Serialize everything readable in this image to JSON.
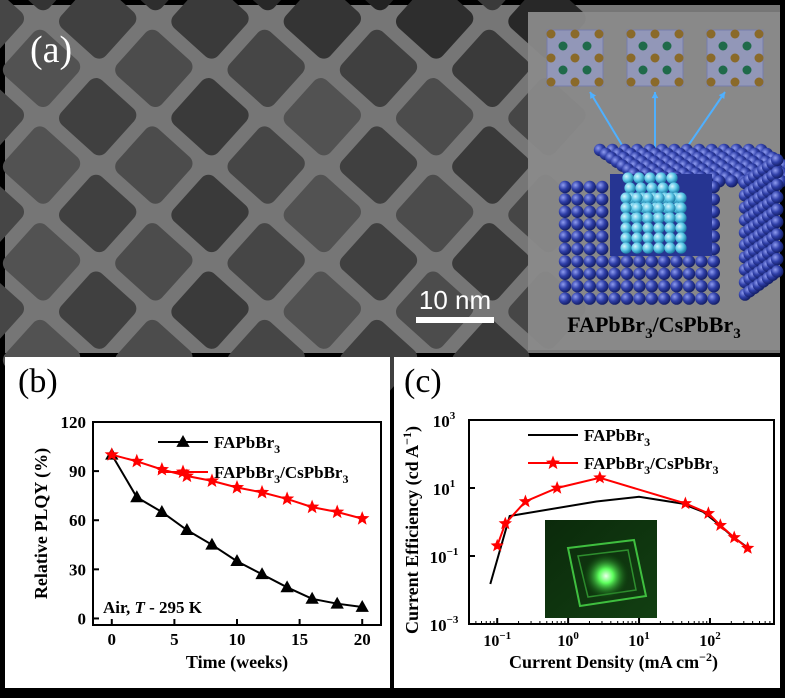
{
  "panel_a": {
    "label": "(a)",
    "scale_bar_text": "10 nm",
    "caption": {
      "main": "FAPbBr",
      "sub1": "3",
      "sep": "/CsPbBr",
      "sub2": "3"
    },
    "colors": {
      "shell": "#2f3fa8",
      "core": "#5ec8e8",
      "tem_bg": "#6a6a6a",
      "tem_edge": "#b4b4b4",
      "atom_pb": "#8a6a2a",
      "atom_cs": "#1f6a4a"
    }
  },
  "chart_data": [
    {
      "type": "line",
      "panel_label": "(b)",
      "x": [
        0,
        2,
        4,
        6,
        8,
        10,
        12,
        14,
        16,
        18,
        20
      ],
      "series": [
        {
          "name": "FAPbBr3",
          "label_main": "FAPbBr",
          "label_sub": "3",
          "color": "#000000",
          "marker": "triangle",
          "values": [
            100,
            74,
            65,
            54,
            45,
            35,
            27,
            19,
            12,
            9,
            7
          ]
        },
        {
          "name": "FAPbBr3/CsPbBr3",
          "label_main": "FAPbBr",
          "label_sub": "3",
          "label_sep": "/CsPbBr",
          "label_sub2": "3",
          "color": "#ff0000",
          "marker": "star",
          "values": [
            100,
            96,
            91,
            87,
            84,
            80,
            77,
            73,
            68,
            65,
            61
          ]
        }
      ],
      "xlabel": "Time (weeks)",
      "ylabel": "Relative PLQY (%)",
      "xlim": [
        -1.5,
        21.5
      ],
      "ylim": [
        -4,
        120
      ],
      "xticks": [
        0,
        5,
        10,
        15,
        20
      ],
      "xtick_labels": [
        "0",
        "5",
        "10",
        "15",
        "20"
      ],
      "yticks": [
        0,
        30,
        60,
        90,
        120
      ],
      "ytick_labels": [
        "0",
        "30",
        "60",
        "90",
        "120"
      ],
      "annotation": {
        "pre": "Air, ",
        "italic": "T",
        "post": " - 295 K"
      },
      "legend": "top-right",
      "grid": false
    },
    {
      "type": "line",
      "panel_label": "(c)",
      "x_scale": "log",
      "y_scale": "log",
      "series": [
        {
          "name": "FAPbBr3",
          "label_main": "FAPbBr",
          "label_sub": "3",
          "color": "#000000",
          "marker": "none",
          "x": [
            0.08,
            0.15,
            2.5,
            10,
            40,
            80,
            130,
            200,
            350
          ],
          "values": [
            0.015,
            1.5,
            4,
            5.5,
            3.5,
            2,
            0.9,
            0.4,
            0.17
          ]
        },
        {
          "name": "FAPbBr3/CsPbBr3",
          "label_main": "FAPbBr",
          "label_sub": "3",
          "label_sep": "/CsPbBr",
          "label_sub2": "3",
          "color": "#ff0000",
          "marker": "star",
          "x": [
            0.1,
            0.13,
            0.25,
            0.7,
            2.8,
            45,
            95,
            140,
            220,
            340
          ],
          "values": [
            0.2,
            0.9,
            4,
            10,
            20,
            3.5,
            1.8,
            0.8,
            0.35,
            0.17
          ]
        }
      ],
      "xlabel": {
        "main": "Current Density (mA cm",
        "sup": "−2",
        "end": ")"
      },
      "ylabel": {
        "main": "Current Efficiency (cd A",
        "sup": "−1",
        "end": ")"
      },
      "xlim": [
        0.04,
        800
      ],
      "ylim": [
        0.001,
        1000
      ],
      "xticks": [
        0.1,
        1,
        10,
        100
      ],
      "xtick_labels": [
        {
          "base": "10",
          "exp": "−1"
        },
        {
          "base": "10",
          "exp": "0"
        },
        {
          "base": "10",
          "exp": "1"
        },
        {
          "base": "10",
          "exp": "2"
        }
      ],
      "yticks": [
        0.001,
        0.1,
        10,
        1000
      ],
      "ytick_labels": [
        {
          "base": "10",
          "exp": "−3"
        },
        {
          "base": "10",
          "exp": "−1"
        },
        {
          "base": "10",
          "exp": "1"
        },
        {
          "base": "10",
          "exp": "3"
        }
      ],
      "legend": "top-right",
      "grid": false
    }
  ]
}
